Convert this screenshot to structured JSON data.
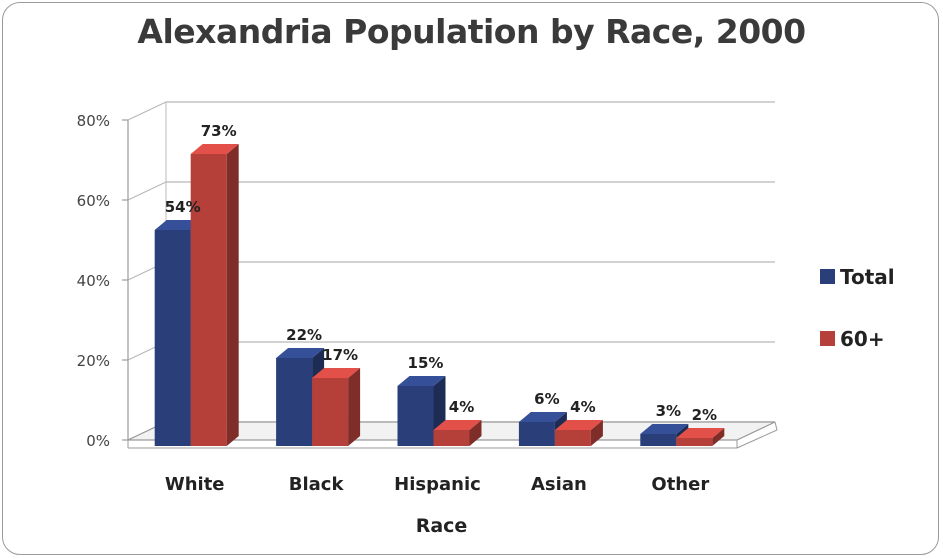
{
  "chart_data": {
    "type": "bar",
    "title": "Alexandria Population by Race, 2000",
    "xlabel": "Race",
    "ylabel": "",
    "categories": [
      "White",
      "Black",
      "Hispanic",
      "Asian",
      "Other"
    ],
    "series": [
      {
        "name": "Total",
        "values": [
          54,
          22,
          15,
          6,
          3
        ],
        "labels": [
          "54%",
          "22%",
          "15%",
          "6%",
          "3%"
        ],
        "color": "#2a3f7a"
      },
      {
        "name": "60+",
        "values": [
          73,
          17,
          4,
          4,
          2
        ],
        "labels": [
          "73%",
          "17%",
          "4%",
          "4%",
          "2%"
        ],
        "color": "#b5403a"
      }
    ],
    "ylim": [
      0,
      80
    ],
    "yticks": [
      "0%",
      "20%",
      "40%",
      "60%",
      "80%"
    ],
    "grid": true,
    "legend_position": "right",
    "style": "3d-clustered-column"
  }
}
